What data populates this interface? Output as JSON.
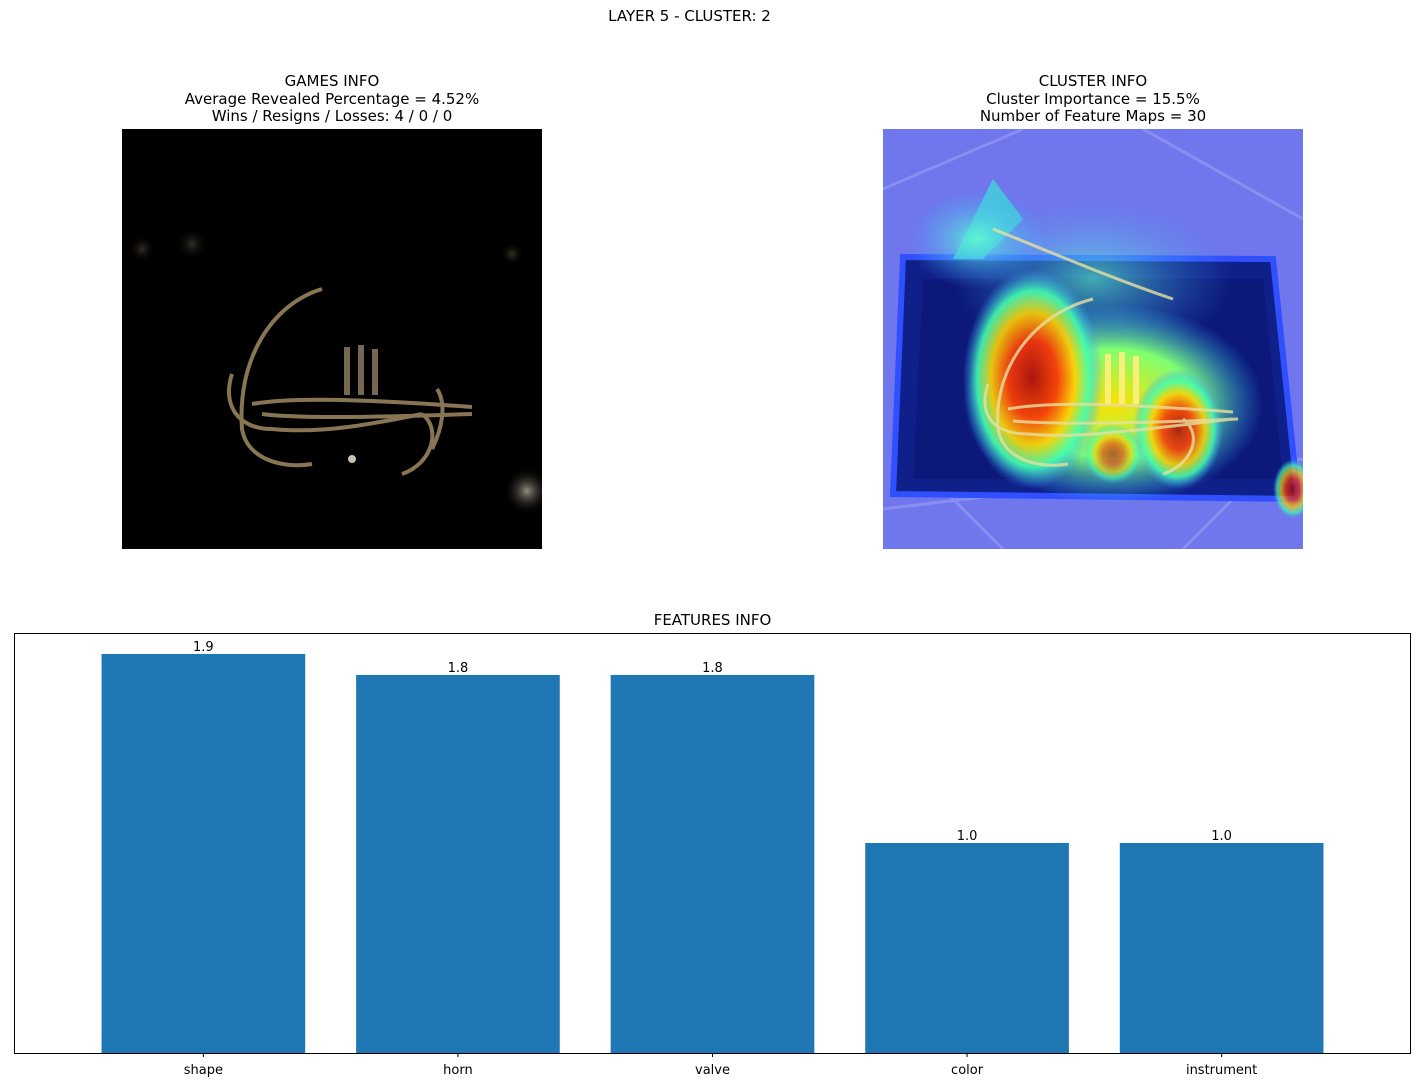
{
  "suptitle": "LAYER 5 - CLUSTER: 2",
  "games_info": {
    "title": "GAMES INFO",
    "line1": "Average Revealed Percentage = 4.52%",
    "line2": "Wins / Resigns / Losses: 4 / 0 / 0"
  },
  "cluster_info": {
    "title": "CLUSTER INFO",
    "line1": "Cluster Importance = 15.5%",
    "line2": "Number of Feature Maps = 30"
  },
  "features_title": "FEATURES INFO",
  "colors": {
    "bar": "#1f77b4"
  },
  "chart_data": {
    "type": "bar",
    "title": "FEATURES INFO",
    "categories": [
      "shape",
      "horn",
      "valve",
      "color",
      "instrument"
    ],
    "values": [
      1.9,
      1.8,
      1.8,
      1.0,
      1.0
    ],
    "value_labels": [
      "1.9",
      "1.8",
      "1.8",
      "1.0",
      "1.0"
    ],
    "ylim": [
      0,
      1.995
    ],
    "y_axis_visible": false,
    "grid": false
  }
}
